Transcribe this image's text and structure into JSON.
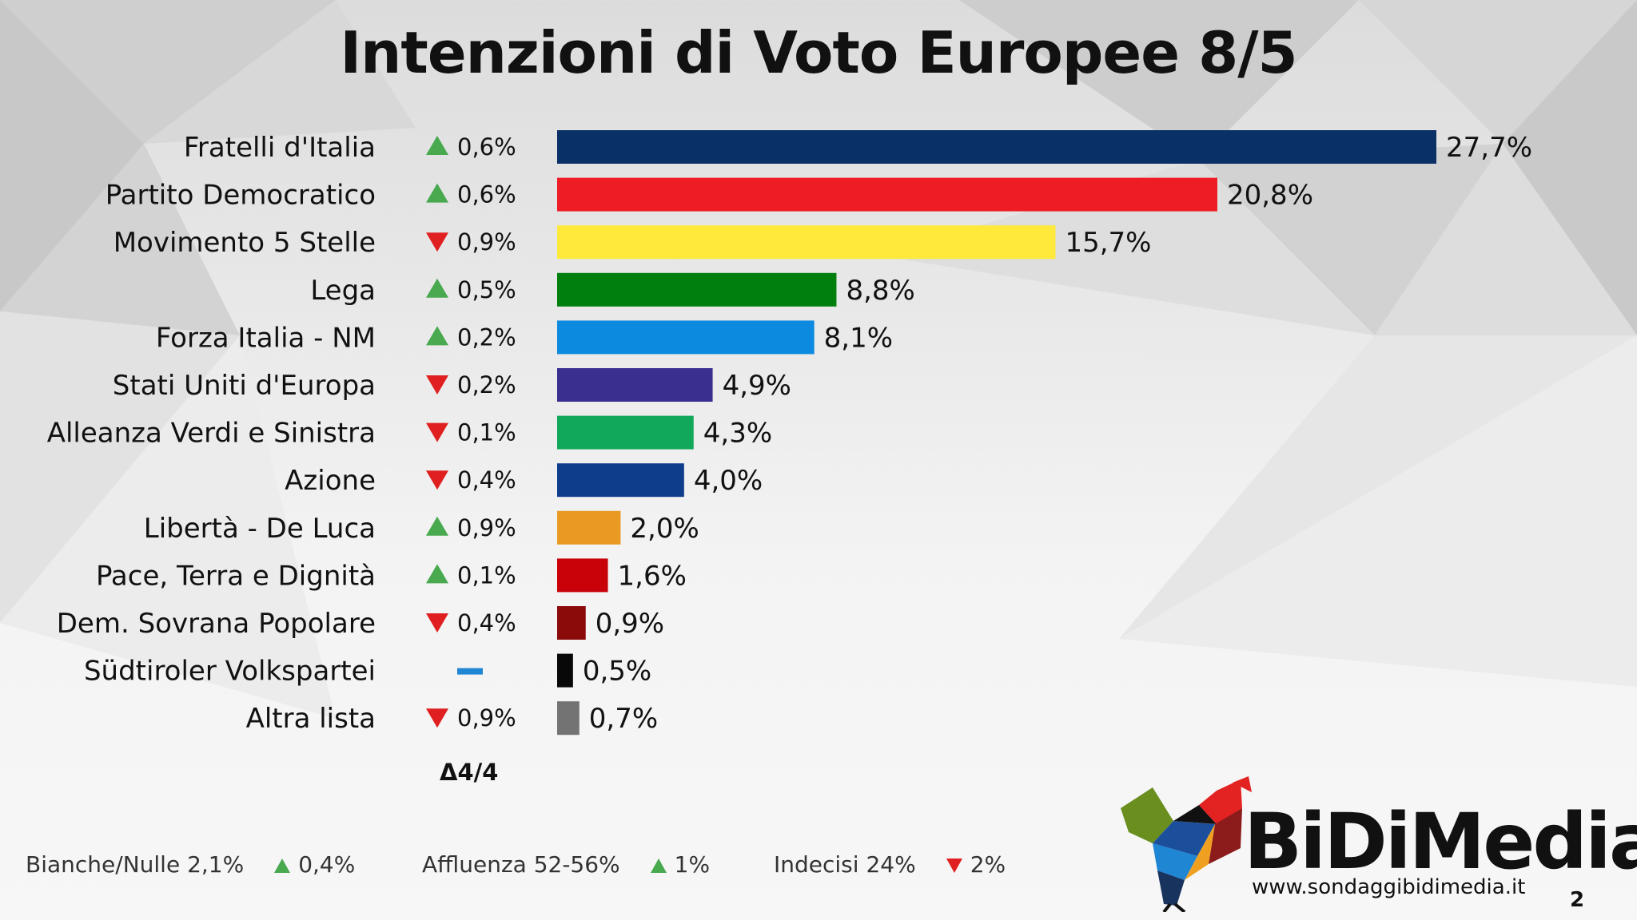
{
  "header": {
    "title": "Intenzioni di Voto Europee 8/5"
  },
  "chart_data": {
    "type": "bar",
    "orientation": "horizontal",
    "title": "Intenzioni di Voto Europee 8/5",
    "xlim": [
      0,
      27.7
    ],
    "categories": [
      "Fratelli d'Italia",
      "Partito Democratico",
      "Movimento 5 Stelle",
      "Lega",
      "Forza Italia - NM",
      "Stati Uniti d'Europa",
      "Alleanza Verdi e Sinistra",
      "Azione",
      "Libertà - De Luca",
      "Pace, Terra e Dignità",
      "Dem. Sovrana Popolare",
      "Südtiroler Volkspartei",
      "Altra lista"
    ],
    "values": [
      27.7,
      20.8,
      15.7,
      8.8,
      8.1,
      4.9,
      4.3,
      4.0,
      2.0,
      1.6,
      0.9,
      0.5,
      0.7
    ],
    "value_labels": [
      "27,7%",
      "20,8%",
      "15,7%",
      "8,8%",
      "8,1%",
      "4,9%",
      "4,3%",
      "4,0%",
      "2,0%",
      "1,6%",
      "0,9%",
      "0,5%",
      "0,7%"
    ],
    "colors": [
      "#0a3068",
      "#ee1c25",
      "#ffe93a",
      "#007f0e",
      "#0c8ae0",
      "#3a2f8f",
      "#11a85a",
      "#0e3d8c",
      "#ea9a22",
      "#c9020a",
      "#8b0a0a",
      "#080808",
      "#737373"
    ],
    "delta_header": "Δ4/4",
    "deltas": [
      {
        "dir": "up",
        "label": "0,6%"
      },
      {
        "dir": "up",
        "label": "0,6%"
      },
      {
        "dir": "down",
        "label": "0,9%"
      },
      {
        "dir": "up",
        "label": "0,5%"
      },
      {
        "dir": "up",
        "label": "0,2%"
      },
      {
        "dir": "down",
        "label": "0,2%"
      },
      {
        "dir": "down",
        "label": "0,1%"
      },
      {
        "dir": "down",
        "label": "0,4%"
      },
      {
        "dir": "up",
        "label": "0,9%"
      },
      {
        "dir": "up",
        "label": "0,1%"
      },
      {
        "dir": "down",
        "label": "0,4%"
      },
      {
        "dir": "none",
        "label": ""
      },
      {
        "dir": "down",
        "label": "0,9%"
      }
    ],
    "delta_colors": {
      "up": "#48a94f",
      "down": "#e02020",
      "none": "#1f86d4"
    }
  },
  "footer": {
    "bianche": {
      "label": "Bianche/Nulle 2,1%",
      "dir": "up",
      "delta": "0,4%"
    },
    "affluenza": {
      "label": "Affluenza 52-56%",
      "dir": "up",
      "delta": "1%"
    },
    "indecisi": {
      "label": "Indecisi 24%",
      "dir": "down",
      "delta": "2%"
    }
  },
  "branding": {
    "name": "BiDiMedia",
    "website": "www.sondaggibidimedia.it",
    "logo_icon": "rooster-icon"
  },
  "page_number": "2"
}
